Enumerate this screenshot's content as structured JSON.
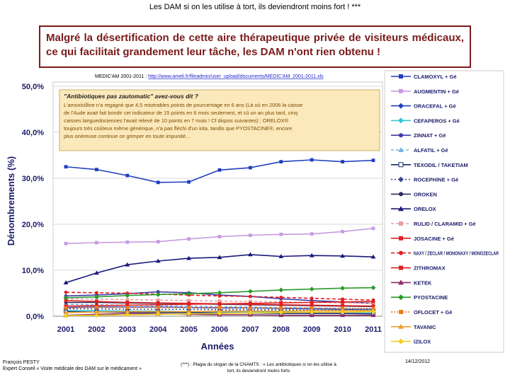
{
  "top_caption": "Les DAM si on les utilise à tort, ils deviendront moins fort ! ***",
  "headline": "Malgré la désertification de cette aire thérapeutique privée de visiteurs médicaux, ce qui facilitait grandement leur tâche, les DAM n'ont rien obtenu !",
  "source_label": "MEDIC'AM 2001-2011 : ",
  "source_link": "http://www.ameli.fr/fileadmin/user_upload/documents/MEDIC'AM_2001-2011.xls",
  "annotation": {
    "title": "\"Antibiotiques pas zautomatic\" avez-vous dit ?",
    "lines": [
      "L'amoxicilline n'a regagné que 4,5 misérables points de pourcentage en 6 ans (Là où en 2006 la caisse",
      "de l'Aude avait fait bondir cet indicateur de 15 points en 6 mois seulement, et cû un an plus tard, cinq",
      "caisses languedociennes l'avait relevé de 10 points en 7 mois ! Cf dispos suivantes) ; ORELOX®",
      "toujours très coûteux même générique, n'a pas fléchi d'un iota, tandis que PYOSTACINE®, encore",
      "plus onéreuse continue ce grimper en toute impunité..."
    ]
  },
  "author": "François PESTY\nExpert Conseil « Visite médicale des DAM sur le médicament »",
  "footnote": "(***) : Plagia du slogan de la CNAMTS : « Les antibiotiques si on les utilise à tort, ils deviendront moins forts",
  "date": "14/12/2012",
  "chart_data": {
    "type": "line",
    "title": "",
    "xlabel": "Années",
    "ylabel": "Dénombrements (%)",
    "ylim": [
      0,
      50
    ],
    "y_ticks": [
      "0,0%",
      "10,0%",
      "20,0%",
      "30,0%",
      "40,0%",
      "50,0%"
    ],
    "y_tick_values": [
      0,
      10,
      20,
      30,
      40,
      50
    ],
    "categories": [
      "2001",
      "2002",
      "2003",
      "2004",
      "2005",
      "2006",
      "2007",
      "2008",
      "2009",
      "2010",
      "2011"
    ],
    "legend_position": "right",
    "series": [
      {
        "name": "CLAMOXYL + Gé",
        "color": "#1f3fbf",
        "marker": "square",
        "dash": "",
        "values": [
          32.5,
          31.9,
          30.6,
          29.1,
          29.2,
          31.8,
          32.3,
          33.6,
          34.0,
          33.6,
          33.9
        ]
      },
      {
        "name": "AUGMENTIN + Gé",
        "color": "#c79be0",
        "marker": "square",
        "dash": "",
        "values": [
          15.8,
          16.0,
          16.1,
          16.2,
          16.8,
          17.3,
          17.6,
          17.8,
          17.9,
          18.4,
          19.1
        ]
      },
      {
        "name": "ORACEFAL + Gé",
        "color": "#1f3fbf",
        "marker": "diamond",
        "dash": "",
        "values": [
          1.9,
          2.0,
          2.0,
          2.0,
          1.9,
          1.8,
          1.8,
          1.7,
          1.6,
          1.5,
          1.5
        ]
      },
      {
        "name": "CEFAPEROS + Gé",
        "color": "#33c6d6",
        "marker": "diamond",
        "dash": "",
        "values": [
          1.2,
          1.2,
          1.1,
          1.1,
          1.0,
          1.0,
          1.0,
          0.9,
          0.9,
          0.9,
          0.8
        ]
      },
      {
        "name": "ZINNAT + Gé",
        "color": "#3a3aa8",
        "marker": "circle",
        "dash": "",
        "values": [
          4.4,
          4.6,
          4.9,
          5.3,
          5.1,
          4.6,
          4.3,
          3.8,
          3.4,
          3.1,
          2.8
        ]
      },
      {
        "name": "ALFATIL + Gé",
        "color": "#6fb7e8",
        "marker": "triangle",
        "dash": "4 3",
        "values": [
          2.6,
          2.5,
          2.4,
          2.3,
          2.2,
          2.1,
          2.0,
          1.9,
          1.8,
          1.7,
          1.6
        ]
      },
      {
        "name": "TEXODIL / TAKETIAM",
        "color": "#1a2a6a",
        "marker": "square-open",
        "dash": "",
        "values": [
          1.0,
          0.9,
          0.9,
          0.8,
          0.8,
          0.7,
          0.7,
          0.6,
          0.6,
          0.6,
          0.5
        ]
      },
      {
        "name": "ROCEPHINE + Gé",
        "color": "#3a4a8a",
        "marker": "diamond",
        "dash": "2 3",
        "values": [
          1.6,
          1.6,
          1.5,
          1.5,
          1.5,
          1.4,
          1.4,
          1.4,
          1.3,
          1.3,
          1.3
        ]
      },
      {
        "name": "OROKEN",
        "color": "#2a2a5a",
        "marker": "circle",
        "dash": "",
        "values": [
          3.0,
          3.0,
          2.9,
          2.8,
          2.7,
          2.6,
          2.5,
          2.4,
          2.3,
          2.2,
          2.1
        ]
      },
      {
        "name": "ORELOX",
        "color": "#1a1a7a",
        "marker": "triangle",
        "dash": "",
        "values": [
          7.3,
          9.4,
          11.2,
          12.0,
          12.6,
          12.8,
          13.4,
          13.0,
          13.2,
          13.1,
          12.9
        ]
      },
      {
        "name": "RULID / CLARAMID + Gé",
        "color": "#e8a0a0",
        "marker": "square",
        "dash": "4 3",
        "values": [
          3.8,
          3.7,
          3.6,
          3.5,
          3.4,
          3.3,
          3.2,
          3.1,
          3.0,
          2.9,
          2.8
        ]
      },
      {
        "name": "JOSACINE + Gé",
        "color": "#e02020",
        "marker": "square",
        "dash": "",
        "values": [
          2.2,
          2.3,
          2.4,
          2.5,
          2.6,
          2.7,
          2.8,
          2.9,
          3.0,
          3.1,
          3.2
        ]
      },
      {
        "name": "NAXY / ZECLAR / MONONAXY / MONOZECLAR",
        "color": "#e02020",
        "marker": "circle",
        "dash": "5 3",
        "values": [
          5.2,
          5.1,
          5.0,
          4.8,
          4.6,
          4.4,
          4.3,
          4.1,
          3.9,
          3.7,
          3.5
        ]
      },
      {
        "name": "ZITHROMAX",
        "color": "#e02020",
        "marker": "square",
        "dash": "",
        "values": [
          3.4,
          3.2,
          3.0,
          2.9,
          2.8,
          2.7,
          2.6,
          2.5,
          2.4,
          2.3,
          2.2
        ]
      },
      {
        "name": "KETEK",
        "color": "#8a2a6a",
        "marker": "triangle",
        "dash": "",
        "values": [
          0.2,
          0.4,
          0.6,
          0.5,
          0.4,
          0.3,
          0.3,
          0.2,
          0.2,
          0.2,
          0.2
        ]
      },
      {
        "name": "PYOSTACINE",
        "color": "#2a9a2a",
        "marker": "diamond",
        "dash": "",
        "values": [
          4.0,
          4.2,
          4.5,
          4.7,
          4.9,
          5.1,
          5.4,
          5.7,
          5.9,
          6.1,
          6.2
        ]
      },
      {
        "name": "OFLOCET + Gé",
        "color": "#f07a20",
        "marker": "square",
        "dash": "2 2",
        "values": [
          1.8,
          1.9,
          1.9,
          1.9,
          1.9,
          1.9,
          1.8,
          1.8,
          1.8,
          1.7,
          1.7
        ]
      },
      {
        "name": "TAVANIC",
        "color": "#f0a030",
        "marker": "triangle",
        "dash": "",
        "values": [
          0.8,
          0.9,
          1.0,
          1.0,
          1.0,
          1.1,
          1.1,
          1.1,
          1.2,
          1.2,
          1.2
        ]
      },
      {
        "name": "IZILOX",
        "color": "#f0d020",
        "marker": "diamond",
        "dash": "",
        "values": [
          0.1,
          0.2,
          0.3,
          0.4,
          0.5,
          0.6,
          0.7,
          0.8,
          0.9,
          0.9,
          1.0
        ]
      }
    ]
  }
}
